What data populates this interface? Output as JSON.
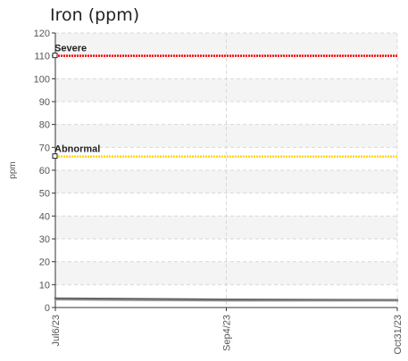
{
  "chart_data": {
    "type": "line",
    "title": "Iron (ppm)",
    "ylabel": "ppm",
    "xlabel": "",
    "categories": [
      "Jul6/23",
      "Sep4/23",
      "Oct31/23"
    ],
    "ylim": [
      0,
      120
    ],
    "y_ticks": [
      0,
      10,
      20,
      30,
      40,
      50,
      60,
      70,
      80,
      90,
      100,
      110,
      120
    ],
    "grid": true,
    "series": [
      {
        "values": [
          4,
          3.5,
          3.3
        ],
        "color": "#555555"
      },
      {
        "values": [
          3.5,
          3,
          3
        ],
        "color": "#888888"
      }
    ],
    "thresholds": [
      {
        "name": "Severe",
        "value": 110,
        "color": "#ff0000"
      },
      {
        "name": "Abnormal",
        "value": 66,
        "color": "#ffd700"
      }
    ]
  }
}
